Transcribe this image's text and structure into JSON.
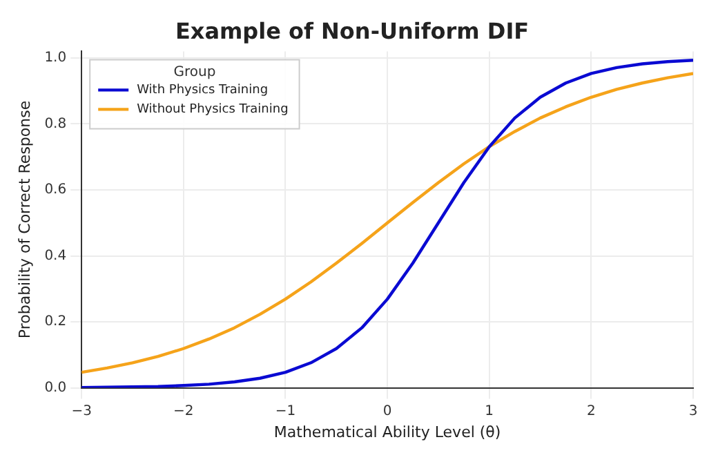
{
  "chart_data": {
    "type": "line",
    "title": "Example of Non-Uniform DIF",
    "xlabel": "Mathematical Ability Level (θ)",
    "ylabel": "Probability of Correct Response",
    "legend_title": "Group",
    "legend": "top left",
    "grid": true,
    "marker": "none",
    "line_style": "solid",
    "x": [
      -3,
      -2.75,
      -2.5,
      -2.25,
      -2,
      -1.75,
      -1.5,
      -1.25,
      -1,
      -0.75,
      -0.5,
      -0.25,
      0,
      0.25,
      0.5,
      0.75,
      1,
      1.25,
      1.5,
      1.75,
      2,
      2.25,
      2.5,
      2.75,
      3
    ],
    "series": [
      {
        "name": "With Physics Training",
        "color": "#0a0ad2",
        "values": [
          0.001,
          0.002,
          0.003,
          0.004,
          0.007,
          0.011,
          0.018,
          0.029,
          0.047,
          0.076,
          0.119,
          0.182,
          0.269,
          0.378,
          0.5,
          0.622,
          0.731,
          0.818,
          0.881,
          0.924,
          0.953,
          0.971,
          0.982,
          0.989,
          0.993
        ]
      },
      {
        "name": "Without Physics Training",
        "color": "#f5a31a",
        "values": [
          0.047,
          0.06,
          0.076,
          0.095,
          0.119,
          0.148,
          0.182,
          0.223,
          0.269,
          0.321,
          0.378,
          0.438,
          0.5,
          0.562,
          0.622,
          0.679,
          0.731,
          0.777,
          0.818,
          0.852,
          0.881,
          0.905,
          0.924,
          0.94,
          0.953
        ]
      }
    ],
    "xlim": [
      -3,
      3
    ],
    "xticks": [
      {
        "value": -3,
        "label": "−3"
      },
      {
        "value": -2,
        "label": "−2"
      },
      {
        "value": -1,
        "label": "−1"
      },
      0,
      1,
      2,
      3
    ],
    "ylim": [
      0,
      1.02
    ],
    "yticks": [
      {
        "value": 0,
        "label": "0.0"
      },
      {
        "value": 0.2,
        "label": "0.2"
      },
      {
        "value": 0.4,
        "label": "0.4"
      },
      {
        "value": 0.6,
        "label": "0.6"
      },
      {
        "value": 0.8,
        "label": "0.8"
      },
      {
        "value": 1,
        "label": "1.0"
      }
    ]
  }
}
